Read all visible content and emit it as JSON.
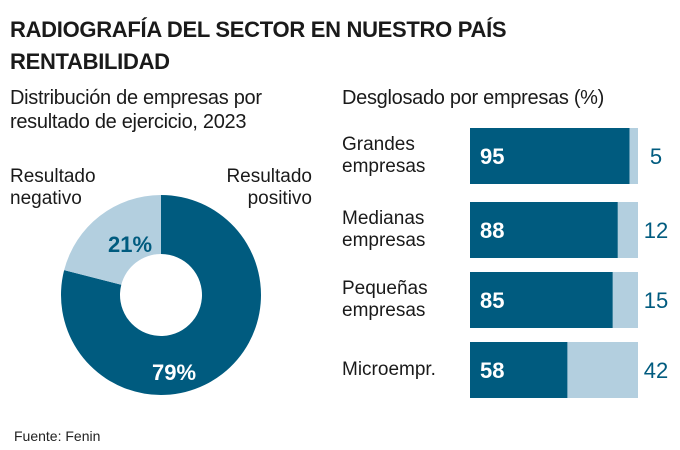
{
  "header": {
    "title": "RADIOGRAFÍA DEL SECTOR EN NUESTRO PAÍS",
    "subtitle": "RENTABILIDAD"
  },
  "colors": {
    "positive": "#005b7f",
    "negative": "#b3cfdf",
    "label_on_dark": "#ffffff",
    "label_on_light": "#005b7f"
  },
  "chart_data": [
    {
      "type": "pie",
      "variant": "donut",
      "title": "Distribución de empresas por resultado de ejercicio, 2023",
      "title_lines": [
        "Distribución de empresas por",
        "resultado de ejercicio, 2023"
      ],
      "slices": [
        {
          "name": "Resultado positivo",
          "label_lines": [
            "Resultado",
            "positivo"
          ],
          "value": 79,
          "data_label": "79%"
        },
        {
          "name": "Resultado negativo",
          "label_lines": [
            "Resultado",
            "negativo"
          ],
          "value": 21,
          "data_label": "21%"
        }
      ]
    },
    {
      "type": "bar",
      "orientation": "horizontal",
      "stacked": true,
      "title": "Desglosado por empresas (%)",
      "categories": [
        "Grandes empresas",
        "Medianas empresas",
        "Pequeñas empresas",
        "Microempr."
      ],
      "category_lines": [
        [
          "Grandes",
          "empresas"
        ],
        [
          "Medianas",
          "empresas"
        ],
        [
          "Pequeñas",
          "empresas"
        ],
        [
          "Microempr."
        ]
      ],
      "series": [
        {
          "name": "Resultado positivo",
          "values": [
            95,
            88,
            85,
            58
          ]
        },
        {
          "name": "Resultado negativo",
          "values": [
            5,
            12,
            15,
            42
          ]
        }
      ],
      "xlim": [
        0,
        100
      ]
    }
  ],
  "footer": {
    "source": "Fuente: Fenin"
  }
}
